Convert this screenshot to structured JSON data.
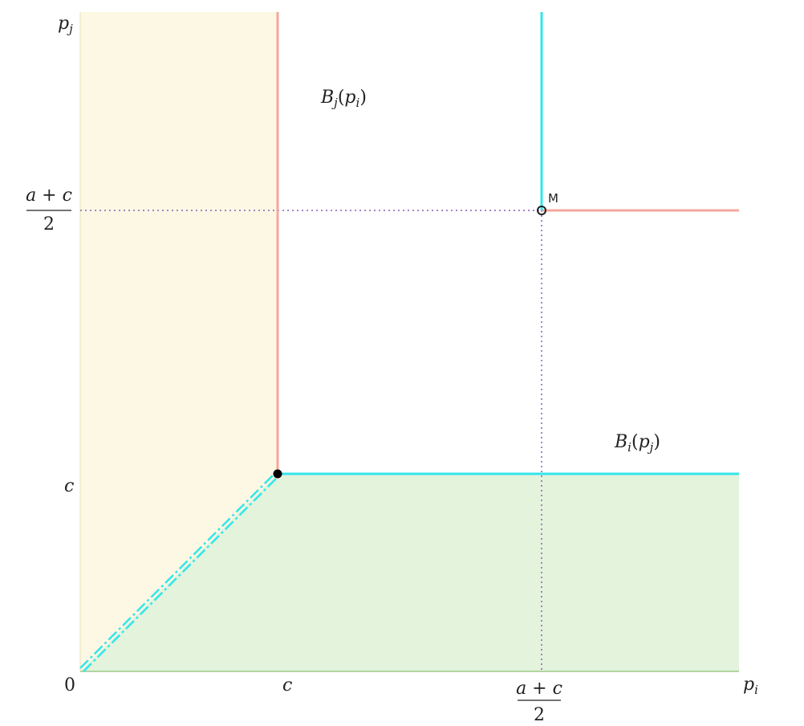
{
  "axes": {
    "x_label": "p",
    "x_label_sub": "i",
    "y_label": "p",
    "y_label_sub": "j",
    "origin_label": "0"
  },
  "ticks": {
    "x_c": "c",
    "y_c": "c",
    "x_half_num": "a + c",
    "x_half_den": "2",
    "y_half_num": "a + c",
    "y_half_den": "2"
  },
  "curves": {
    "bj_label": {
      "name": "B",
      "sub": "j",
      "arg": "p",
      "arg_sub": "i"
    },
    "bi_label": {
      "name": "B",
      "sub": "i",
      "arg": "p",
      "arg_sub": "j"
    }
  },
  "points": {
    "monopoly_label": "M"
  },
  "colors": {
    "region_yellow": "#fdf8e4",
    "region_green": "#e3f3dc",
    "best_response_j": "#f4a79c",
    "best_response_i": "#33e6ea",
    "dotted_guides": "#8a5fb8",
    "axis": "#9cc98a",
    "nash_point": "#000000"
  }
}
